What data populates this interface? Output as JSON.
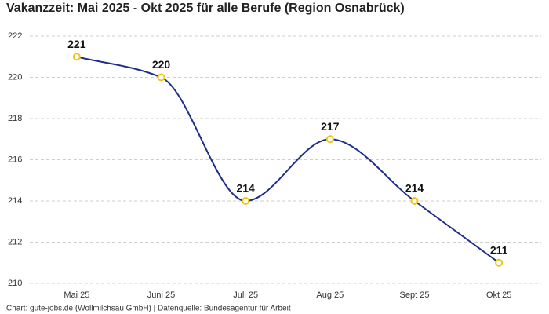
{
  "chart_data": {
    "type": "line",
    "title": "Vakanzzeit: Mai 2025 - Okt 2025 für alle Berufe (Region Osnabrück)",
    "source": "Chart: gute-jobs.de (Wollmilchsau GmbH) | Datenquelle: Bundesagentur für Arbeit",
    "categories": [
      "Mai 25",
      "Juni 25",
      "Juli 25",
      "Aug 25",
      "Sept 25",
      "Okt 25"
    ],
    "series": [
      {
        "values": [
          221,
          220,
          214,
          217,
          214,
          211
        ],
        "color": "#1f2d8a",
        "marker_color": "#f2c417"
      }
    ],
    "ylim": [
      210,
      222
    ],
    "yticks": [
      210,
      212,
      214,
      216,
      218,
      220,
      222
    ],
    "grid": true
  }
}
